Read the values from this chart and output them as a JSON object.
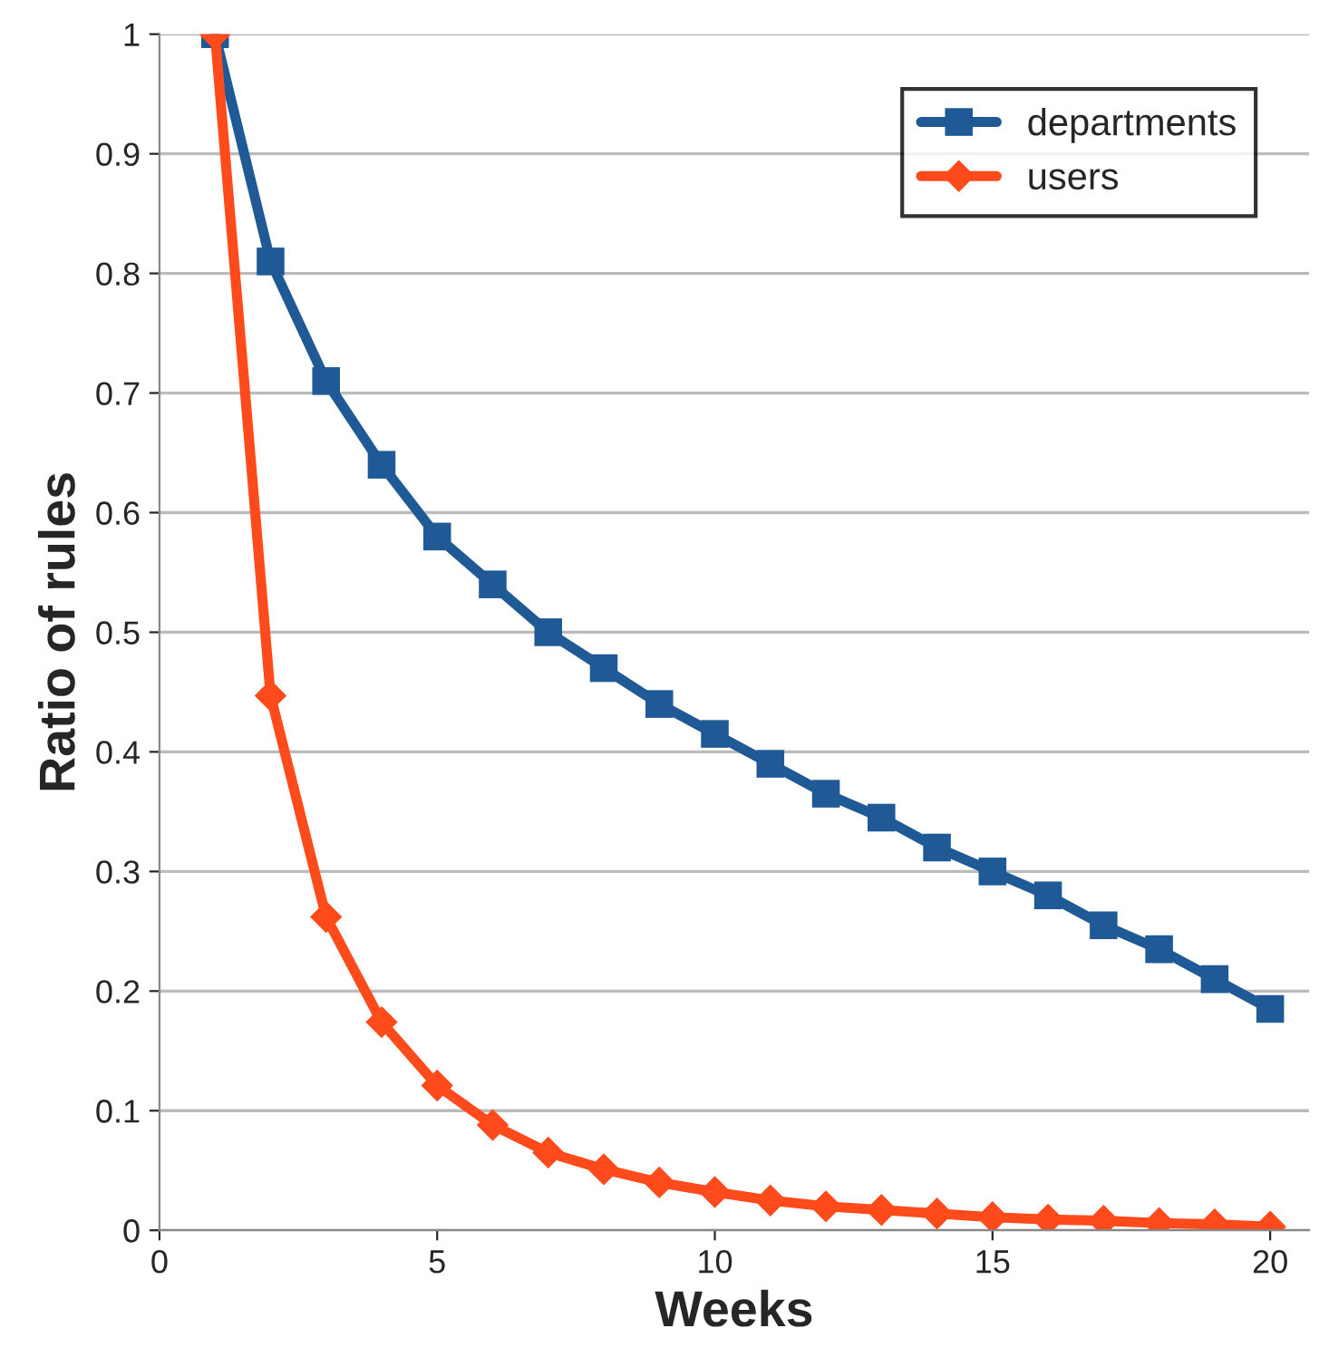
{
  "chart_data": {
    "type": "line",
    "xlabel": "Weeks",
    "ylabel": "Ratio of rules",
    "x": [
      1,
      2,
      3,
      4,
      5,
      6,
      7,
      8,
      9,
      10,
      11,
      12,
      13,
      14,
      15,
      16,
      17,
      18,
      19,
      20
    ],
    "series": [
      {
        "name": "departments",
        "color": "#1f5a96",
        "marker": "square",
        "values": [
          1.0,
          0.81,
          0.71,
          0.64,
          0.58,
          0.54,
          0.5,
          0.47,
          0.44,
          0.415,
          0.39,
          0.365,
          0.345,
          0.32,
          0.3,
          0.28,
          0.255,
          0.235,
          0.21,
          0.185
        ]
      },
      {
        "name": "users",
        "color": "#ff4a1c",
        "marker": "diamond",
        "values": [
          1.0,
          0.447,
          0.262,
          0.174,
          0.121,
          0.088,
          0.065,
          0.051,
          0.04,
          0.032,
          0.025,
          0.02,
          0.017,
          0.014,
          0.011,
          0.009,
          0.008,
          0.006,
          0.005,
          0.003
        ]
      }
    ],
    "xlim": [
      0,
      20.7
    ],
    "xticks": [
      0,
      5,
      10,
      15,
      20
    ],
    "ylim": [
      0,
      1
    ],
    "yticks": [
      0,
      0.1,
      0.2,
      0.3,
      0.4,
      0.5,
      0.6,
      0.7,
      0.8,
      0.9,
      1
    ],
    "grid": "y",
    "legend": "top right",
    "line_style": "solid"
  }
}
